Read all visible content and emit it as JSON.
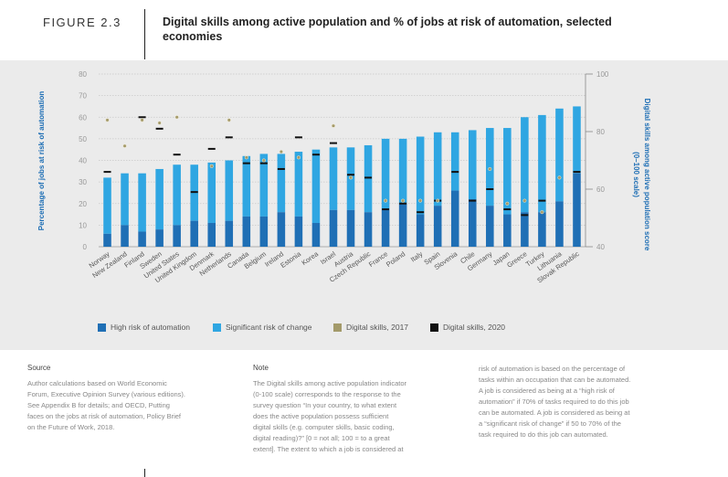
{
  "header": {
    "figure_label": "FIGURE 2.3",
    "title": "Digital skills among active population and % of jobs at risk of automation, selected economies"
  },
  "chart_data": {
    "type": "bar",
    "title": "Digital skills among active population and % of jobs at risk of automation, selected economies",
    "ylabel": "Percentage of jobs at risk of automation",
    "y2label": "Digital skills among active population score (0–100 scale)",
    "ylim": [
      0,
      80
    ],
    "y2lim": [
      40,
      100
    ],
    "yticks": [
      "0",
      "10",
      "20",
      "30",
      "40",
      "50",
      "60",
      "70",
      "80"
    ],
    "y2ticks": [
      "40",
      "60",
      "80",
      "100"
    ],
    "categories": [
      "Norway",
      "New Zealand",
      "Finland",
      "Sweden",
      "United States",
      "United Kingdom",
      "Denmark",
      "Netherlands",
      "Canada",
      "Belgium",
      "Ireland",
      "Estonia",
      "Korea",
      "Israel",
      "Austria",
      "Czech Republic",
      "France",
      "Poland",
      "Italy",
      "Spain",
      "Slovenia",
      "Chile",
      "Germany",
      "Japan",
      "Greece",
      "Turkey",
      "Lithuania",
      "Slovak Republic"
    ],
    "series": [
      {
        "name": "High risk of automation",
        "type": "bar-stacked",
        "color": "#1f6fb5",
        "values": [
          6,
          10,
          7,
          8,
          10,
          12,
          11,
          12,
          14,
          14,
          16,
          14,
          11,
          17,
          17,
          16,
          17,
          20,
          15,
          19,
          26,
          22,
          19,
          15,
          16,
          16,
          21,
          34
        ]
      },
      {
        "name": "Significant risk of change",
        "type": "bar-stacked",
        "color": "#2fa6e2",
        "values": [
          26,
          24,
          27,
          28,
          28,
          26,
          28,
          28,
          28,
          29,
          27,
          30,
          34,
          29,
          29,
          31,
          33,
          30,
          36,
          34,
          27,
          32,
          36,
          40,
          44,
          45,
          43,
          31
        ]
      },
      {
        "name": "Digital skills, 2017",
        "type": "marker",
        "color": "#a39a6a",
        "values": [
          84,
          75,
          84,
          83,
          85,
          null,
          68,
          84,
          71,
          70,
          73,
          71,
          null,
          82,
          64,
          null,
          56,
          56,
          56,
          56,
          null,
          null,
          67,
          55,
          56,
          52,
          64,
          null
        ]
      },
      {
        "name": "Digital skills, 2020",
        "type": "marker",
        "color": "#111111",
        "values": [
          66,
          null,
          85,
          81,
          72,
          59,
          74,
          78,
          69,
          69,
          67,
          78,
          72,
          76,
          65,
          64,
          53,
          55,
          52,
          56,
          66,
          56,
          60,
          53,
          51,
          56,
          null,
          66
        ]
      }
    ],
    "legend_position": "bottom",
    "grid": true
  },
  "legend": {
    "items": [
      "High risk of automation",
      "Significant risk of change",
      "Digital skills, 2017",
      "Digital skills, 2020"
    ]
  },
  "notes": {
    "source_heading": "Source",
    "source_text": [
      "Author calculations based on World Economic",
      "Forum, Executive Opinion Survey (various editions).",
      "See Appendix B for details; and OECD, Putting",
      "faces on the jobs at risk of automation, Policy Brief",
      "on the Future of Work, 2018."
    ],
    "note_heading": "Note",
    "note_text": [
      "The Digital skills among active population indicator",
      "(0-100 scale) corresponds to the response to the",
      "survey question “In your country, to what extent",
      "does the active population possess sufficient",
      "digital skills (e.g. computer skills, basic coding,",
      "digital reading)?” [0 = not all; 100 = to a great",
      "extent]. The extent to which a job is considered at"
    ],
    "note_cont_text": [
      "risk of automation is based on the percentage of",
      "tasks within an occupation that can be automated.",
      "A job is considered as being at a “high risk of",
      "automation” if 70% of tasks required to do this job",
      "can be automated. A job is considered as being at",
      "a “significant risk of change” if 50 to 70% of the",
      "task required to do this job can automated."
    ]
  }
}
